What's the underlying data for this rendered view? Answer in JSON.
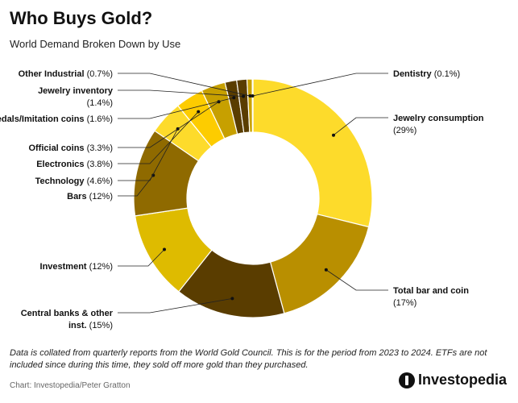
{
  "header": {
    "title": "Who Buys Gold?",
    "subtitle": "World Demand Broken Down by Use"
  },
  "chart_data": {
    "type": "donut",
    "title": "Who Buys Gold?",
    "subtitle": "World Demand Broken Down by Use",
    "unit": "%",
    "categories": [
      "Jewelry consumption",
      "Total bar and coin",
      "Central banks & other inst.",
      "Investment",
      "Bars",
      "Technology",
      "Electronics",
      "Official coins",
      "Medals/Imitation coins",
      "Jewelry inventory",
      "Other Industrial",
      "Dentistry"
    ],
    "values": [
      29,
      17,
      15,
      12,
      12,
      4.6,
      3.8,
      3.3,
      1.6,
      1.4,
      0.7,
      0.1
    ],
    "labels": [
      {
        "name": [
          "Jewelry consumption"
        ],
        "pct": "(29%)"
      },
      {
        "name": [
          "Total bar and coin"
        ],
        "pct": "(17%)"
      },
      {
        "name": [
          "Central banks & other",
          "inst."
        ],
        "pct": "(15%)"
      },
      {
        "name": [
          "Investment"
        ],
        "pct": "(12%)"
      },
      {
        "name": [
          "Bars"
        ],
        "pct": "(12%)"
      },
      {
        "name": [
          "Technology"
        ],
        "pct": "(4.6%)"
      },
      {
        "name": [
          "Electronics"
        ],
        "pct": "(3.8%)"
      },
      {
        "name": [
          "Official coins"
        ],
        "pct": "(3.3%)"
      },
      {
        "name": [
          "Medals/Imitation coins"
        ],
        "pct": "(1.6%)"
      },
      {
        "name": [
          "Jewelry inventory"
        ],
        "pct": "(1.4%)"
      },
      {
        "name": [
          "Other Industrial"
        ],
        "pct": "(0.7%)"
      },
      {
        "name": [
          "Dentistry"
        ],
        "pct": "(0.1%)"
      }
    ],
    "colors": [
      "#fddb2b",
      "#b98f00",
      "#5a3d00",
      "#debb00",
      "#8f6a00",
      "#fddb2b",
      "#fdcc00",
      "#c7a000",
      "#5a3d00",
      "#5a3d00",
      "#c9a200",
      "#e1c200"
    ]
  },
  "footer": {
    "note": "Data is collated from quarterly reports from the World Gold Council. This is for the period from 2023 to 2024. ETFs are not included since during this time, they sold off more gold than they purchased.",
    "source": "Chart: Investopedia/Peter Gratton",
    "brand": "Investopedia"
  }
}
